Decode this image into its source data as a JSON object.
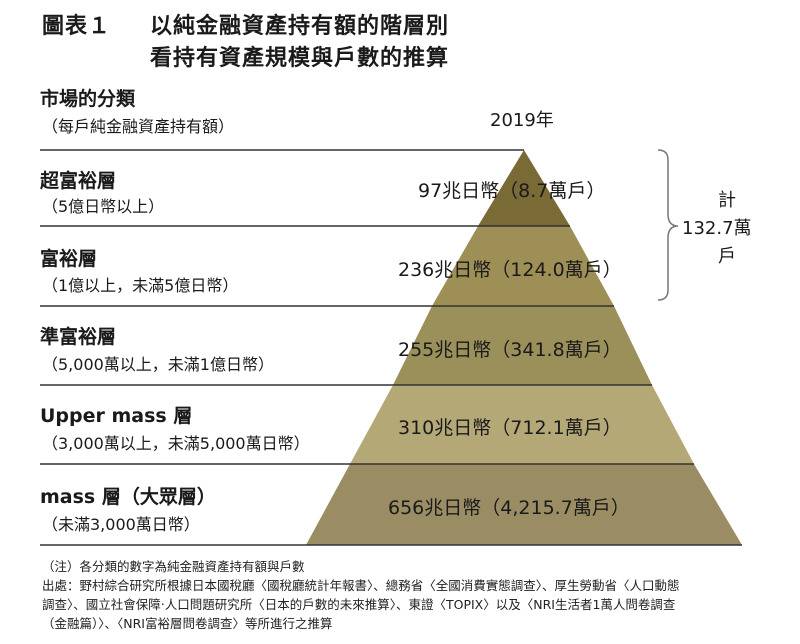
{
  "title": {
    "label": "圖表１",
    "line1": "以純金融資產持有額的階層別",
    "line2": "看持有資產規模與戶數的推算"
  },
  "header": {
    "title": "市場的分類",
    "subtitle": "（每戶純金融資產持有額）",
    "year": "2019年"
  },
  "tiers": [
    {
      "name": "超富裕層",
      "range": "（5億日幣以上）",
      "value": "97兆日幣（8.7萬戶）",
      "color": "#7a6a35"
    },
    {
      "name": "富裕層",
      "range": "（1億以上，未滿5億日幣）",
      "value": "236兆日幣（124.0萬戶）",
      "color": "#9d8f55"
    },
    {
      "name": "準富裕層",
      "range": "（5,000萬以上，未滿1億日幣）",
      "value": "255兆日幣（341.8萬戶）",
      "color": "#9b8f5a"
    },
    {
      "name": "Upper mass 層",
      "range": "（3,000萬以上，未滿5,000萬日幣）",
      "value": "310兆日幣（712.1萬戶）",
      "color": "#b4a877"
    },
    {
      "name": "mass 層（大眾層）",
      "range": "（未滿3,000萬日幣）",
      "value": "656兆日幣（4,215.7萬戶）",
      "color": "#9a8d64"
    }
  ],
  "total": {
    "line1": "計",
    "line2": "132.7萬",
    "line3": "戶"
  },
  "notes": [
    "（注）各分類的數字為純金融資產持有額與戶數",
    "出處：野村綜合研究所根據日本國稅廳〈國稅廳統計年報書〉、總務省〈全國消費實態調查〉、厚生勞動省〈人口動態",
    "調查〉、國立社會保障‧人口問題研究所〈日本的戶數的未來推算〉、東證〈TOPIX〉以及〈NRI生活者1萬人問卷調查",
    "（金融篇）〉、〈NRI富裕層問卷調查〉等所進行之推算"
  ]
}
